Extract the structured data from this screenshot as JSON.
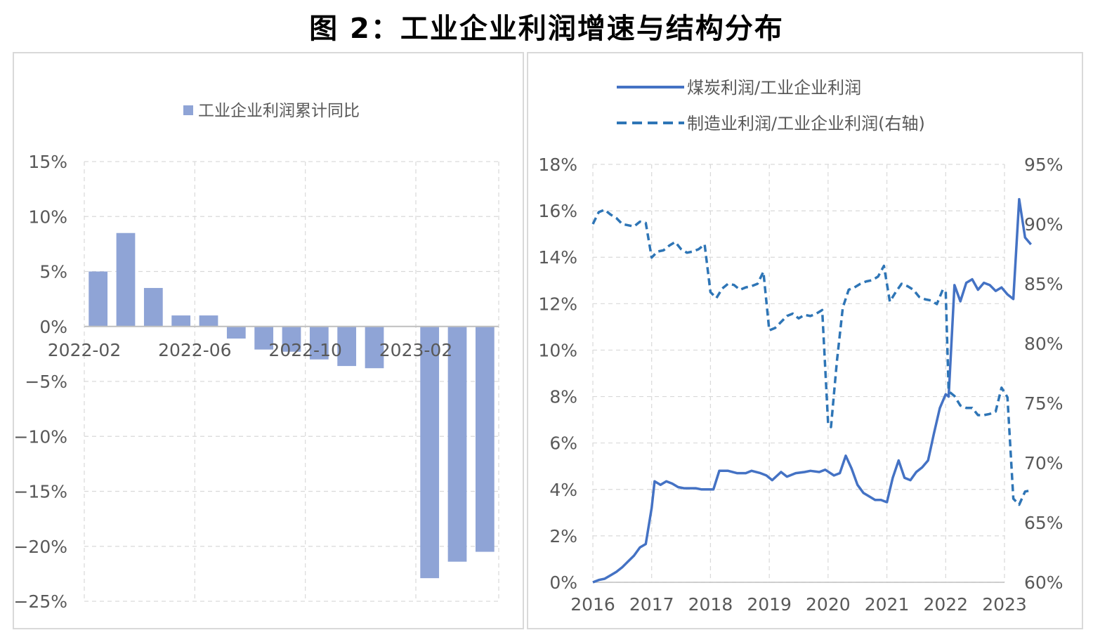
{
  "title": "图 2：工业企业利润增速与结构分布",
  "chart_data": [
    {
      "type": "bar",
      "legend": [
        "工业企业利润累计同比"
      ],
      "legend_position": "top",
      "series": [
        {
          "name": "工业企业利润累计同比",
          "color": "#8fa4d6",
          "values": [
            5.0,
            8.5,
            3.5,
            1.0,
            1.0,
            -1.1,
            -2.1,
            -2.3,
            -3.0,
            -3.6,
            -3.8,
            null,
            -22.9,
            -21.4,
            -20.5
          ]
        }
      ],
      "categories": [
        "2022-02",
        "2022-03",
        "2022-04",
        "2022-05",
        "2022-06",
        "2022-07",
        "2022-08",
        "2022-09",
        "2022-10",
        "2022-11",
        "2022-12",
        "2023-01",
        "2023-02",
        "2023-03",
        "2023-04"
      ],
      "x_tick_labels": [
        "2022-02",
        "2022-06",
        "2022-10",
        "2023-02"
      ],
      "y_tick_labels": [
        "15%",
        "10%",
        "5%",
        "0%",
        "−5%",
        "−10%",
        "−15%",
        "−20%",
        "−25%"
      ],
      "ylim": [
        -25,
        15
      ],
      "grid": true
    },
    {
      "type": "line",
      "legend_position": "top",
      "x_tick_labels": [
        "2016",
        "2017",
        "2018",
        "2019",
        "2020",
        "2021",
        "2022",
        "2023"
      ],
      "y_left_tick_labels": [
        "18%",
        "16%",
        "14%",
        "12%",
        "10%",
        "8%",
        "6%",
        "4%",
        "2%",
        "0%"
      ],
      "y_right_tick_labels": [
        "95%",
        "90%",
        "85%",
        "80%",
        "75%",
        "70%",
        "65%",
        "60%"
      ],
      "ylim_left": [
        0,
        18
      ],
      "ylim_right": [
        60,
        95
      ],
      "grid": true,
      "series": [
        {
          "name": "煤炭利润/工业企业利润",
          "style": "solid",
          "axis": "left",
          "color": "#4472c4",
          "points": [
            [
              2016.0,
              0.0
            ],
            [
              2016.1,
              0.1
            ],
            [
              2016.2,
              0.15
            ],
            [
              2016.3,
              0.3
            ],
            [
              2016.4,
              0.45
            ],
            [
              2016.5,
              0.65
            ],
            [
              2016.6,
              0.9
            ],
            [
              2016.7,
              1.15
            ],
            [
              2016.8,
              1.5
            ],
            [
              2016.9,
              1.65
            ],
            [
              2017.0,
              3.2
            ],
            [
              2017.05,
              4.35
            ],
            [
              2017.15,
              4.2
            ],
            [
              2017.25,
              4.35
            ],
            [
              2017.35,
              4.25
            ],
            [
              2017.45,
              4.1
            ],
            [
              2017.55,
              4.05
            ],
            [
              2017.65,
              4.05
            ],
            [
              2017.75,
              4.05
            ],
            [
              2017.85,
              4.0
            ],
            [
              2017.95,
              4.0
            ],
            [
              2018.05,
              4.0
            ],
            [
              2018.15,
              4.8
            ],
            [
              2018.3,
              4.8
            ],
            [
              2018.45,
              4.7
            ],
            [
              2018.6,
              4.7
            ],
            [
              2018.7,
              4.8
            ],
            [
              2018.85,
              4.7
            ],
            [
              2018.95,
              4.6
            ],
            [
              2019.05,
              4.4
            ],
            [
              2019.2,
              4.75
            ],
            [
              2019.3,
              4.55
            ],
            [
              2019.45,
              4.7
            ],
            [
              2019.6,
              4.75
            ],
            [
              2019.7,
              4.8
            ],
            [
              2019.85,
              4.75
            ],
            [
              2019.95,
              4.85
            ],
            [
              2020.1,
              4.6
            ],
            [
              2020.2,
              4.7
            ],
            [
              2020.3,
              5.45
            ],
            [
              2020.4,
              4.9
            ],
            [
              2020.5,
              4.2
            ],
            [
              2020.6,
              3.85
            ],
            [
              2020.7,
              3.7
            ],
            [
              2020.8,
              3.55
            ],
            [
              2020.9,
              3.55
            ],
            [
              2021.0,
              3.45
            ],
            [
              2021.1,
              4.5
            ],
            [
              2021.2,
              5.25
            ],
            [
              2021.3,
              4.5
            ],
            [
              2021.4,
              4.4
            ],
            [
              2021.5,
              4.75
            ],
            [
              2021.6,
              4.95
            ],
            [
              2021.7,
              5.25
            ],
            [
              2021.8,
              6.4
            ],
            [
              2021.9,
              7.5
            ],
            [
              2022.0,
              8.1
            ],
            [
              2022.05,
              8.0
            ],
            [
              2022.15,
              12.8
            ],
            [
              2022.25,
              12.1
            ],
            [
              2022.35,
              12.9
            ],
            [
              2022.45,
              13.05
            ],
            [
              2022.55,
              12.6
            ],
            [
              2022.65,
              12.9
            ],
            [
              2022.75,
              12.8
            ],
            [
              2022.85,
              12.55
            ],
            [
              2022.95,
              12.7
            ],
            [
              2023.05,
              12.4
            ],
            [
              2023.15,
              12.2
            ],
            [
              2023.25,
              16.5
            ],
            [
              2023.35,
              14.85
            ],
            [
              2023.45,
              14.55
            ]
          ]
        },
        {
          "name": "制造业利润/工业企业利润(右轴)",
          "style": "dashed",
          "axis": "right",
          "color": "#2e75b6",
          "points": [
            [
              2016.0,
              90.0
            ],
            [
              2016.1,
              91.0
            ],
            [
              2016.2,
              91.2
            ],
            [
              2016.3,
              90.8
            ],
            [
              2016.4,
              90.5
            ],
            [
              2016.5,
              90.0
            ],
            [
              2016.6,
              89.9
            ],
            [
              2016.7,
              89.8
            ],
            [
              2016.8,
              90.2
            ],
            [
              2016.9,
              90.1
            ],
            [
              2017.0,
              87.2
            ],
            [
              2017.1,
              87.7
            ],
            [
              2017.2,
              87.8
            ],
            [
              2017.3,
              88.2
            ],
            [
              2017.4,
              88.5
            ],
            [
              2017.5,
              87.9
            ],
            [
              2017.6,
              87.6
            ],
            [
              2017.7,
              87.7
            ],
            [
              2017.8,
              87.9
            ],
            [
              2017.9,
              88.3
            ],
            [
              2018.0,
              84.3
            ],
            [
              2018.1,
              83.8
            ],
            [
              2018.2,
              84.6
            ],
            [
              2018.3,
              85.0
            ],
            [
              2018.4,
              84.9
            ],
            [
              2018.5,
              84.5
            ],
            [
              2018.6,
              84.7
            ],
            [
              2018.7,
              84.8
            ],
            [
              2018.8,
              85.0
            ],
            [
              2018.9,
              86.0
            ],
            [
              2019.0,
              81.1
            ],
            [
              2019.1,
              81.3
            ],
            [
              2019.2,
              81.8
            ],
            [
              2019.3,
              82.3
            ],
            [
              2019.4,
              82.5
            ],
            [
              2019.5,
              82.1
            ],
            [
              2019.6,
              82.4
            ],
            [
              2019.7,
              82.3
            ],
            [
              2019.8,
              82.5
            ],
            [
              2019.9,
              82.8
            ],
            [
              2020.0,
              73.3
            ],
            [
              2020.05,
              73.0
            ],
            [
              2020.15,
              78.5
            ],
            [
              2020.25,
              83.0
            ],
            [
              2020.35,
              84.5
            ],
            [
              2020.45,
              84.7
            ],
            [
              2020.55,
              85.0
            ],
            [
              2020.65,
              85.2
            ],
            [
              2020.75,
              85.3
            ],
            [
              2020.85,
              85.6
            ],
            [
              2020.95,
              86.5
            ],
            [
              2021.05,
              83.5
            ],
            [
              2021.15,
              84.3
            ],
            [
              2021.25,
              85.0
            ],
            [
              2021.35,
              84.8
            ],
            [
              2021.45,
              84.5
            ],
            [
              2021.55,
              83.9
            ],
            [
              2021.65,
              83.7
            ],
            [
              2021.75,
              83.6
            ],
            [
              2021.85,
              83.3
            ],
            [
              2021.95,
              84.5
            ],
            [
              2022.0,
              84.4
            ],
            [
              2022.05,
              76.0
            ],
            [
              2022.15,
              75.6
            ],
            [
              2022.25,
              74.8
            ],
            [
              2022.35,
              74.6
            ],
            [
              2022.45,
              74.6
            ],
            [
              2022.55,
              74.0
            ],
            [
              2022.65,
              74.0
            ],
            [
              2022.75,
              74.1
            ],
            [
              2022.85,
              74.3
            ],
            [
              2022.95,
              76.3
            ],
            [
              2023.05,
              75.5
            ],
            [
              2023.15,
              67.0
            ],
            [
              2023.25,
              66.5
            ],
            [
              2023.35,
              67.6
            ],
            [
              2023.45,
              67.7
            ]
          ]
        }
      ]
    }
  ]
}
